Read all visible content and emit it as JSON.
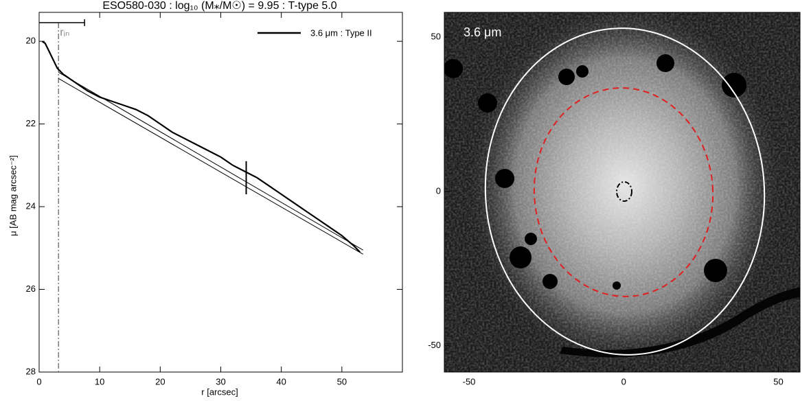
{
  "chart_data": [
    {
      "type": "line",
      "title": "ESO580-030 : log₁₀ (M⁎/M☉) = 9.95 : T-type 5.0",
      "x_label": "r [arcsec]",
      "y_label": "μ [AB mag arcsec⁻²]",
      "annotation": "rᵢₙ",
      "x": [
        0.5,
        1,
        2,
        3,
        4,
        6,
        8,
        10,
        12,
        14,
        16,
        18,
        20,
        22,
        24,
        26,
        28,
        30,
        32,
        34,
        36,
        38,
        40,
        42,
        44,
        46,
        48,
        50,
        52,
        53
      ],
      "series": [
        {
          "name": "3.6 μm : Type II",
          "color": "#000000",
          "values": [
            20.0,
            20.05,
            20.35,
            20.65,
            20.8,
            21.0,
            21.2,
            21.35,
            21.45,
            21.55,
            21.65,
            21.8,
            22.0,
            22.2,
            22.35,
            22.5,
            22.65,
            22.8,
            23.0,
            23.15,
            23.3,
            23.5,
            23.7,
            23.9,
            24.1,
            24.3,
            24.5,
            24.7,
            24.95,
            25.1
          ]
        }
      ],
      "fits": [
        {
          "x": [
            3.2,
            53.5
          ],
          "values": [
            20.75,
            25.05
          ]
        },
        {
          "x": [
            3.2,
            53.5
          ],
          "values": [
            20.9,
            25.15
          ]
        }
      ],
      "break": {
        "x": 34.2,
        "values": [
          22.9,
          23.7
        ]
      },
      "r_in": 3.2,
      "scale_bar": {
        "x": [
          0,
          7.5
        ],
        "y": 19.55
      },
      "xlim": [
        0,
        60
      ],
      "ylim": [
        28,
        19.3
      ],
      "xticks": [
        0,
        10,
        20,
        30,
        40,
        50
      ],
      "yticks": [
        20,
        22,
        24,
        26,
        28
      ]
    },
    {
      "type": "image",
      "label": "3.6 μm",
      "xlim": [
        -58,
        57
      ],
      "ylim": [
        -58.5,
        58
      ],
      "xticks": [
        -50,
        0,
        50
      ],
      "yticks": [
        -50,
        0,
        50
      ]
    }
  ]
}
